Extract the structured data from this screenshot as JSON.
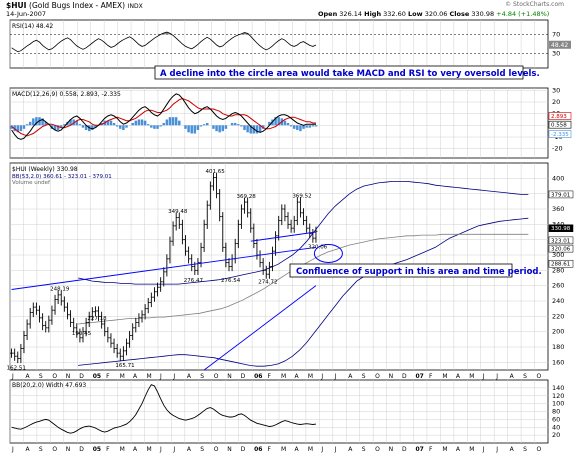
{
  "header": {
    "symbol": "$HUI",
    "name": "(Gold Bugs Index - AMEX)",
    "index_tag": "INDX",
    "date": "14-Jun-2007",
    "open_label": "Open",
    "open": "326.14",
    "high_label": "High",
    "high": "332.60",
    "low_label": "Low",
    "low": "320.06",
    "close_label": "Close",
    "close": "330.98",
    "change": "+4.84 (+1.48%)",
    "watermark": "© StockCharts.com"
  },
  "colors": {
    "price_bar": "#000000",
    "annotation_text": "#0000cc",
    "trendline": "#0000ff",
    "macd_line": "#000000",
    "signal_line": "#cc0000",
    "histogram": "#4a90d9",
    "bband": "#000080",
    "ma_line": "#808080",
    "rsi_fill_overbought": "#808080",
    "panel_bg": "#ffffff",
    "grid": "#d0d0d0"
  },
  "chart_data": [
    {
      "type": "line",
      "panel": "rsi",
      "legend": "RSI(14) 48.42",
      "value_label": "48.42",
      "ylim": [
        0,
        100
      ],
      "levels": [
        70,
        30
      ],
      "tick_labels": [
        "70",
        "30"
      ],
      "series": [
        {
          "name": "RSI(14)",
          "values": [
            42,
            38,
            34,
            36,
            41,
            46,
            50,
            55,
            58,
            54,
            47,
            42,
            38,
            40,
            45,
            51,
            56,
            60,
            63,
            59,
            52,
            46,
            42,
            39,
            42,
            47,
            52,
            57,
            61,
            58,
            53,
            47,
            43,
            45,
            50,
            55,
            59,
            62,
            65,
            61,
            55,
            49,
            45,
            47,
            52,
            57,
            62,
            66,
            70,
            73,
            75,
            72,
            68,
            62,
            56,
            50,
            45,
            42,
            40,
            44,
            49,
            55,
            60,
            64,
            60,
            54,
            48,
            44,
            46,
            52,
            57,
            62,
            66,
            69,
            71,
            74,
            72,
            66,
            59,
            52,
            46,
            41,
            38,
            41,
            46,
            52,
            57,
            61,
            58,
            52,
            47,
            45,
            48,
            53,
            55,
            51,
            47,
            45,
            48
          ]
        }
      ]
    },
    {
      "type": "line",
      "panel": "macd",
      "legend": "MACD(12,26,9) 0.558, 2.893, -2.335",
      "value_labels": [
        "2.893",
        "0.558",
        "-2.335"
      ],
      "tick_labels": [
        "30",
        "20",
        "10",
        "0",
        "-10",
        "-20"
      ],
      "ylim": [
        -28,
        32
      ],
      "series": [
        {
          "name": "MACD(12,26,9)",
          "values": [
            -4,
            -8,
            -11,
            -12,
            -11,
            -8,
            -5,
            -1,
            2,
            4,
            5,
            3,
            1,
            -2,
            -4,
            -5,
            -4,
            -1,
            2,
            5,
            7,
            8,
            6,
            3,
            0,
            -2,
            -3,
            -2,
            0,
            3,
            6,
            8,
            9,
            8,
            6,
            3,
            1,
            2,
            4,
            7,
            10,
            13,
            15,
            16,
            14,
            11,
            9,
            8,
            10,
            14,
            18,
            22,
            25,
            27,
            26,
            23,
            19,
            15,
            12,
            10,
            11,
            13,
            15,
            16,
            14,
            11,
            8,
            6,
            5,
            6,
            8,
            10,
            11,
            10,
            8,
            5,
            2,
            -1,
            -3,
            -5,
            -6,
            -5,
            -3,
            0,
            3,
            6,
            8,
            9,
            9,
            8,
            6,
            4,
            2,
            1,
            0,
            1,
            1,
            1,
            1
          ]
        },
        {
          "name": "Signal",
          "values": [
            -1,
            -3,
            -5,
            -7,
            -8,
            -9,
            -8,
            -7,
            -5,
            -3,
            -1,
            0,
            1,
            1,
            0,
            -1,
            -2,
            -2,
            -1,
            0,
            2,
            4,
            5,
            5,
            4,
            3,
            1,
            0,
            0,
            1,
            2,
            4,
            5,
            6,
            7,
            6,
            5,
            4,
            4,
            5,
            6,
            8,
            10,
            12,
            13,
            13,
            12,
            11,
            11,
            12,
            13,
            15,
            18,
            20,
            22,
            23,
            22,
            21,
            19,
            17,
            15,
            14,
            14,
            14,
            14,
            14,
            13,
            12,
            10,
            9,
            8,
            8,
            9,
            9,
            9,
            9,
            8,
            6,
            4,
            2,
            0,
            -2,
            -3,
            -3,
            -2,
            -1,
            1,
            3,
            5,
            6,
            7,
            7,
            6,
            5,
            4,
            3,
            3,
            2,
            2
          ]
        }
      ],
      "histogram": [
        -3,
        -5,
        -6,
        -5,
        -3,
        1,
        3,
        6,
        7,
        7,
        6,
        3,
        0,
        -3,
        -4,
        -4,
        -2,
        1,
        3,
        5,
        5,
        4,
        1,
        -2,
        -4,
        -5,
        -4,
        -2,
        0,
        2,
        4,
        4,
        4,
        2,
        -1,
        -3,
        -4,
        -2,
        0,
        2,
        4,
        5,
        5,
        4,
        1,
        -2,
        -3,
        -3,
        -1,
        2,
        5,
        7,
        7,
        7,
        4,
        0,
        -3,
        -6,
        -7,
        -7,
        -4,
        -1,
        1,
        2,
        0,
        -3,
        -5,
        -6,
        -5,
        -3,
        0,
        2,
        2,
        1,
        -1,
        -4,
        -6,
        -7,
        -7,
        -7,
        -6,
        -3,
        0,
        3,
        5,
        7,
        7,
        6,
        4,
        2,
        -1,
        -3,
        -4,
        -5,
        -3,
        -2,
        -2,
        -1,
        -1
      ]
    },
    {
      "type": "bar",
      "panel": "price",
      "legend": "$HUI (Weekly) 330.98",
      "legend2": "BB(53,2.0) 360.61 - 323.01 - 379.01",
      "legend3": "Volume undef",
      "ylim": [
        150,
        420
      ],
      "y_ticks": [
        160,
        180,
        200,
        220,
        240,
        260,
        280,
        300,
        320,
        340,
        360,
        380,
        400
      ],
      "axis_value_labels": [
        "379.01",
        "330.98",
        "323.01",
        "320.06",
        "288.61"
      ],
      "x_labels": [
        "J",
        "A",
        "S",
        "O",
        "N",
        "D",
        "05",
        "F",
        "M",
        "A",
        "M",
        "J",
        "J",
        "A",
        "S",
        "O",
        "N",
        "D",
        "06",
        "F",
        "M",
        "A",
        "M",
        "J",
        "J",
        "A",
        "S",
        "O",
        "N",
        "D",
        "07",
        "F",
        "M",
        "A",
        "M",
        "J",
        "J",
        "A",
        "S",
        "O"
      ],
      "x_label_bold": [
        "05",
        "06",
        "07"
      ],
      "annotations_price": [
        "162.51",
        "248.19",
        "227.18",
        "190.45",
        "165.71",
        "349.48",
        "276.47",
        "401.65",
        "276.54",
        "369.28",
        "274.72",
        "369.52",
        "320.06"
      ],
      "annotations_text": [
        "A decline into the circle area would take MACD and RSI to very oversold levels.",
        "Confluence of support in this area and time period."
      ],
      "closes": [
        172,
        168,
        165,
        178,
        195,
        210,
        225,
        232,
        228,
        218,
        208,
        205,
        215,
        228,
        242,
        248,
        240,
        232,
        222,
        212,
        205,
        198,
        192,
        200,
        212,
        220,
        226,
        227,
        220,
        210,
        200,
        192,
        185,
        178,
        172,
        168,
        175,
        185,
        195,
        205,
        212,
        218,
        222,
        230,
        238,
        245,
        252,
        258,
        265,
        278,
        295,
        318,
        338,
        349,
        340,
        320,
        305,
        295,
        285,
        280,
        290,
        310,
        340,
        365,
        390,
        401,
        380,
        350,
        310,
        290,
        285,
        295,
        315,
        340,
        360,
        369,
        355,
        335,
        315,
        300,
        290,
        280,
        275,
        285,
        305,
        325,
        345,
        360,
        350,
        340,
        335,
        345,
        369,
        355,
        345,
        335,
        328,
        322,
        331
      ],
      "bb_upper": [
        270,
        268,
        266,
        265,
        264,
        264,
        263,
        263,
        262,
        262,
        262,
        262,
        262,
        262,
        262,
        263,
        264,
        265,
        266,
        267,
        268,
        270,
        272,
        274,
        276,
        278,
        280,
        284,
        288,
        294,
        300,
        308,
        318,
        330,
        342,
        354,
        364,
        372,
        380,
        386,
        390,
        392,
        394,
        395,
        396,
        396,
        396,
        395,
        394,
        393,
        391,
        390,
        389,
        388,
        387,
        386,
        385,
        384,
        383,
        382,
        381,
        380,
        379,
        379
      ],
      "bb_lower": [
        156,
        157,
        158,
        159,
        160,
        161,
        162,
        163,
        164,
        165,
        166,
        167,
        168,
        169,
        170,
        170,
        169,
        168,
        167,
        166,
        164,
        162,
        160,
        158,
        156,
        155,
        155,
        156,
        158,
        162,
        168,
        176,
        186,
        198,
        210,
        222,
        234,
        246,
        256,
        266,
        272,
        278,
        282,
        285,
        288,
        291,
        294,
        298,
        302,
        306,
        310,
        316,
        322,
        326,
        330,
        334,
        338,
        340,
        342,
        344,
        345,
        346,
        347,
        348
      ],
      "ma_line": [
        210,
        211,
        212,
        213,
        214,
        215,
        216,
        217,
        217,
        218,
        218,
        219,
        219,
        220,
        221,
        222,
        223,
        224,
        226,
        228,
        230,
        233,
        237,
        241,
        246,
        251,
        256,
        262,
        268,
        274,
        280,
        285,
        290,
        295,
        300,
        304,
        307,
        310,
        313,
        315,
        317,
        319,
        321,
        322,
        323,
        324,
        325,
        325,
        326,
        326,
        326,
        327,
        327,
        327,
        327,
        327,
        327,
        327,
        327,
        327,
        327,
        327,
        327,
        327
      ],
      "trendlines": [
        {
          "from_x": 0,
          "from_y": 255,
          "to_x": 98,
          "to_y": 310
        },
        {
          "from_x": 77,
          "from_y": 318,
          "to_x": 98,
          "to_y": 330
        },
        {
          "from_x": 62,
          "from_y": 150,
          "to_x": 98,
          "to_y": 260
        }
      ],
      "support_circle_center": {
        "x": 102,
        "y": 302
      }
    },
    {
      "type": "line",
      "panel": "bb_width",
      "legend": "BB(20,2.0) Width 47.693",
      "ylim": [
        0,
        160
      ],
      "y_ticks": [
        20,
        40,
        60,
        80,
        100,
        120,
        140
      ],
      "series": [
        {
          "name": "BB(20,2.0) Width",
          "values": [
            40,
            38,
            36,
            35,
            38,
            42,
            46,
            50,
            53,
            55,
            58,
            60,
            58,
            52,
            46,
            40,
            35,
            31,
            27,
            25,
            27,
            31,
            36,
            40,
            42,
            43,
            41,
            38,
            34,
            30,
            28,
            30,
            34,
            38,
            40,
            42,
            45,
            48,
            54,
            62,
            72,
            86,
            100,
            118,
            135,
            148,
            145,
            130,
            112,
            96,
            84,
            76,
            70,
            66,
            62,
            60,
            58,
            60,
            62,
            65,
            70,
            76,
            82,
            88,
            90,
            86,
            80,
            74,
            70,
            68,
            66,
            66,
            68,
            72,
            74,
            70,
            64,
            58,
            54,
            50,
            48,
            46,
            44,
            42,
            43,
            46,
            50,
            54,
            57,
            55,
            52,
            50,
            48,
            47,
            48,
            49,
            48,
            47,
            48
          ]
        }
      ]
    }
  ]
}
